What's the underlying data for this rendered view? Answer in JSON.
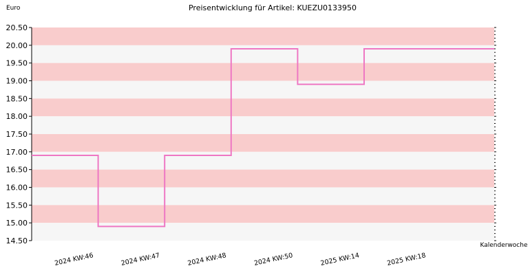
{
  "chart_data": {
    "type": "line",
    "step": true,
    "title": "Preisentwicklung für Artikel: KUEZU0133950",
    "ylabel": "Euro",
    "xlabel": "Kalenderwoche",
    "ylim": [
      14.5,
      20.5
    ],
    "y_ticks": [
      "14.50",
      "15.00",
      "15.50",
      "16.00",
      "16.50",
      "17.00",
      "17.50",
      "18.00",
      "18.50",
      "19.00",
      "19.50",
      "20.00",
      "20.50"
    ],
    "categories": [
      "2024 KW:46",
      "2024 KW:47",
      "2024 KW:48",
      "2024 KW:50",
      "2025 KW:14",
      "2025 KW:18"
    ],
    "values": [
      16.9,
      14.9,
      16.9,
      19.9,
      18.9,
      19.9
    ],
    "grid": true,
    "colors": {
      "line": "#ee77c3",
      "band_dark": "#f9cccc",
      "band_light": "#f6f6f6",
      "axis": "#000000"
    }
  }
}
